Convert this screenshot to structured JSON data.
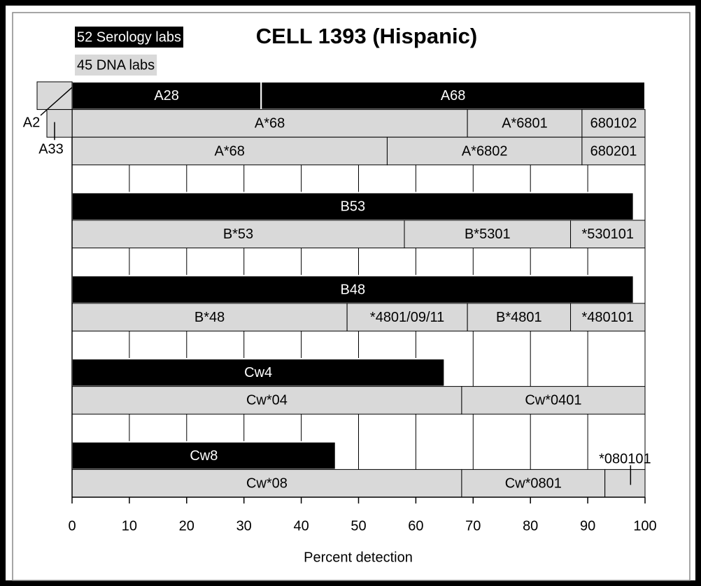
{
  "chart_data": {
    "type": "stacked_bar",
    "title": "CELL 1393 (Hispanic)",
    "xlabel": "Percent detection",
    "xlim": [
      0,
      100
    ],
    "xticks": [
      0,
      10,
      20,
      30,
      40,
      50,
      60,
      70,
      80,
      90,
      100
    ],
    "grid": true,
    "legend": [
      {
        "name": "52 Serology labs",
        "color": "#000000",
        "text_color": "#ffffff"
      },
      {
        "name": "45 DNA labs",
        "color": "#d9d9d9",
        "text_color": "#000000"
      }
    ],
    "groups": [
      [
        {
          "series": 0,
          "segments": [
            {
              "name": "A28",
              "value": 33
            },
            {
              "name": "A68",
              "value": 67
            }
          ]
        },
        {
          "series": 1,
          "segments": [
            {
              "name": "A*68",
              "value": 69
            },
            {
              "name": "A*6801",
              "value": 20
            },
            {
              "name": "680102",
              "value": 11
            }
          ]
        },
        {
          "series": 1,
          "segments": [
            {
              "name": "A*68",
              "value": 55
            },
            {
              "name": "A*6802",
              "value": 34
            },
            {
              "name": "680201",
              "value": 11
            }
          ]
        }
      ],
      [
        {
          "series": 0,
          "segments": [
            {
              "name": "B53",
              "value": 98
            }
          ]
        },
        {
          "series": 1,
          "segments": [
            {
              "name": "B*53",
              "value": 58
            },
            {
              "name": "B*5301",
              "value": 29
            },
            {
              "name": "*530101",
              "value": 13
            }
          ]
        }
      ],
      [
        {
          "series": 0,
          "segments": [
            {
              "name": "B48",
              "value": 98
            }
          ]
        },
        {
          "series": 1,
          "segments": [
            {
              "name": "B*48",
              "value": 48
            },
            {
              "name": "*4801/09/11",
              "value": 21
            },
            {
              "name": "B*4801",
              "value": 18
            },
            {
              "name": "*480101",
              "value": 13
            }
          ]
        }
      ],
      [
        {
          "series": 0,
          "segments": [
            {
              "name": "Cw4",
              "value": 65
            }
          ]
        },
        {
          "series": 1,
          "segments": [
            {
              "name": "Cw*04",
              "value": 68
            },
            {
              "name": "Cw*0401",
              "value": 32
            }
          ]
        }
      ],
      [
        {
          "series": 0,
          "segments": [
            {
              "name": "Cw8",
              "value": 46
            }
          ]
        },
        {
          "series": 1,
          "segments": [
            {
              "name": "Cw*08",
              "value": 68
            },
            {
              "name": "Cw*0801",
              "value": 25
            },
            {
              "name": "*080101",
              "value": 7
            }
          ]
        }
      ]
    ],
    "annotations": [
      "A2",
      "A33"
    ]
  }
}
